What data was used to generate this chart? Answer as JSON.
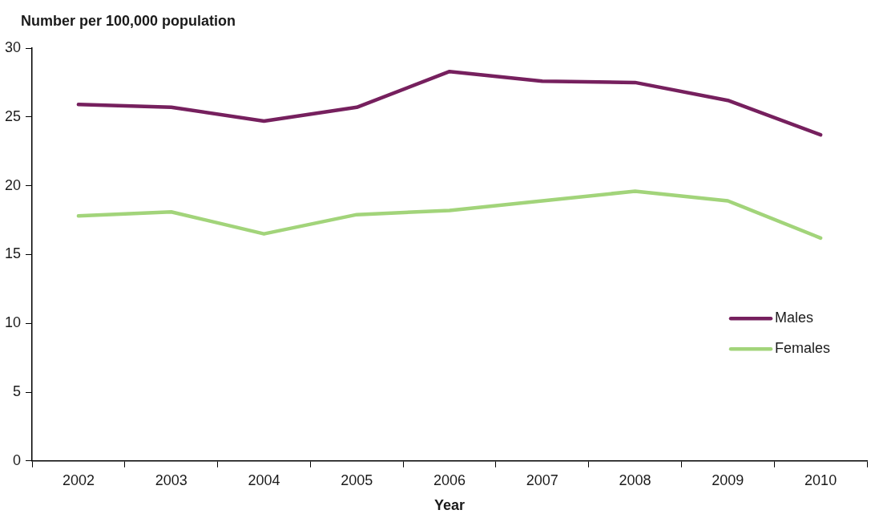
{
  "chart_data": {
    "type": "line",
    "ylabel": "Number per 100,000 population",
    "xlabel": "Year",
    "categories": [
      "2002",
      "2003",
      "2004",
      "2005",
      "2006",
      "2007",
      "2008",
      "2009",
      "2010"
    ],
    "series": [
      {
        "name": "Males",
        "color": "#76205e",
        "values": [
          25.9,
          25.7,
          24.7,
          25.7,
          28.3,
          27.6,
          27.5,
          26.2,
          23.7
        ]
      },
      {
        "name": "Females",
        "color": "#a2d47a",
        "values": [
          17.8,
          18.1,
          16.5,
          17.9,
          18.2,
          18.9,
          19.6,
          18.9,
          16.2
        ]
      }
    ],
    "ylim": [
      0,
      30
    ],
    "yticks": [
      0,
      5,
      10,
      15,
      20,
      25,
      30
    ],
    "grid": false,
    "legend": "right",
    "marker": "none",
    "line_style": "solid"
  }
}
